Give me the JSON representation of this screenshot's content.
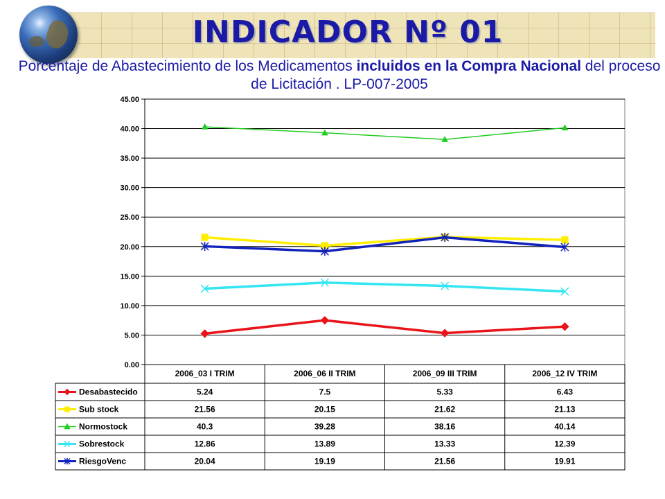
{
  "header": {
    "title": "INDICADOR  Nº 01",
    "subtitle_parts": [
      {
        "text": "Porcentaje de Abastecimiento de los Medicamentos ",
        "bold": false
      },
      {
        "text": "incluidos en la Compra Nacional",
        "bold": true
      },
      {
        "text": " del proceso de Licitación . LP-007-2005",
        "bold": false
      }
    ]
  },
  "chart_data": {
    "type": "line",
    "title": "",
    "xlabel": "",
    "ylabel": "",
    "categories": [
      "2006_03 I TRIM",
      "2006_06 II TRIM",
      "2006_09 III TRIM",
      "2006_12 IV TRIM"
    ],
    "ylim": [
      0,
      45
    ],
    "yticks": [
      "0.00",
      "5.00",
      "10.00",
      "15.00",
      "20.00",
      "25.00",
      "30.00",
      "35.00",
      "40.00",
      "45.00"
    ],
    "grid": true,
    "legend": "data-table-below",
    "series": [
      {
        "name": "Desabastecido",
        "color": "#e8141a",
        "marker": "diamond",
        "values": [
          5.24,
          7.5,
          5.33,
          6.43
        ],
        "labels": [
          "5.24",
          "7.5",
          "5.33",
          "6.43"
        ]
      },
      {
        "name": "Sub stock",
        "color": "#ffee00",
        "marker": "square",
        "values": [
          21.56,
          20.15,
          21.62,
          21.13
        ],
        "labels": [
          "21.56",
          "20.15",
          "21.62",
          "21.13"
        ]
      },
      {
        "name": "Normostock",
        "color": "#22cc22",
        "marker": "triangle",
        "values": [
          40.3,
          39.28,
          38.16,
          40.14
        ],
        "labels": [
          "40.3",
          "39.28",
          "38.16",
          "40.14"
        ]
      },
      {
        "name": "Sobrestock",
        "color": "#33e6f2",
        "marker": "x",
        "values": [
          12.86,
          13.89,
          13.33,
          12.39
        ],
        "labels": [
          "12.86",
          "13.89",
          "13.33",
          "12.39"
        ]
      },
      {
        "name": "RiesgoVenc",
        "color": "#1122bb",
        "marker": "star",
        "values": [
          20.04,
          19.19,
          21.56,
          19.91
        ],
        "labels": [
          "20.04",
          "19.19",
          "21.56",
          "19.91"
        ]
      }
    ]
  }
}
